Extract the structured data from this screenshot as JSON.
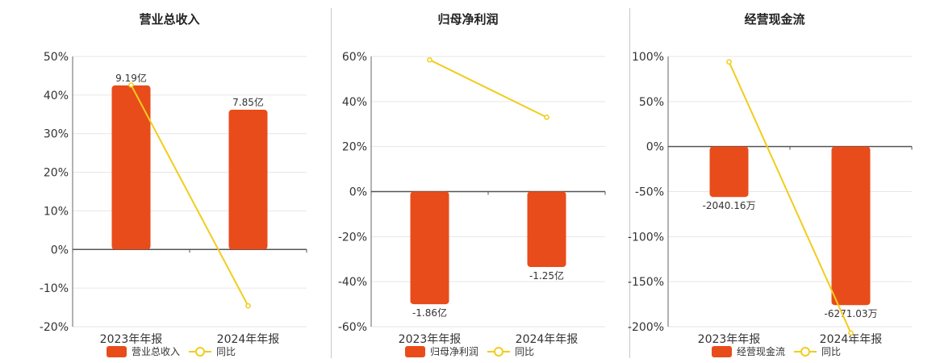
{
  "colors": {
    "bar": "#E84C1B",
    "line": "#F2CC1C",
    "marker_fill": "#ffffff",
    "axis": "#666666",
    "grid": "#e6e6e6",
    "zero_line": "#555555",
    "text": "#333333",
    "title": "#222222"
  },
  "chart_data": [
    {
      "type": "bar",
      "title": "营业总收入",
      "categories": [
        "2023年年报",
        "2024年年报"
      ],
      "ylim": [
        -20,
        50
      ],
      "yticks": [
        50,
        40,
        30,
        20,
        10,
        0,
        -10,
        -20
      ],
      "ytick_labels": [
        "50%",
        "40%",
        "30%",
        "20%",
        "10%",
        "0%",
        "-10%",
        "-20%"
      ],
      "grid": true,
      "legend_position": "bottom",
      "series": [
        {
          "name": "营业总收入",
          "kind": "bar",
          "values": [
            42.5,
            36.2
          ],
          "labels": [
            "9.19亿",
            "7.85亿"
          ]
        },
        {
          "name": "同比",
          "kind": "line",
          "values": [
            42.6,
            -14.6
          ]
        }
      ]
    },
    {
      "type": "bar",
      "title": "归母净利润",
      "categories": [
        "2023年年报",
        "2024年年报"
      ],
      "ylim": [
        -60,
        60
      ],
      "yticks": [
        60,
        40,
        20,
        0,
        -20,
        -40,
        -60
      ],
      "ytick_labels": [
        "60%",
        "40%",
        "20%",
        "0%",
        "-20%",
        "-40%",
        "-60%"
      ],
      "grid": true,
      "legend_position": "bottom",
      "series": [
        {
          "name": "归母净利润",
          "kind": "bar",
          "values": [
            -50,
            -33.5
          ],
          "labels": [
            "-1.86亿",
            "-1.25亿"
          ]
        },
        {
          "name": "同比",
          "kind": "line",
          "values": [
            58.5,
            33
          ]
        }
      ]
    },
    {
      "type": "bar",
      "title": "经营现金流",
      "categories": [
        "2023年年报",
        "2024年年报"
      ],
      "ylim": [
        -200,
        100
      ],
      "yticks": [
        100,
        50,
        0,
        -50,
        -100,
        -150,
        -200
      ],
      "ytick_labels": [
        "100%",
        "50%",
        "0%",
        "-50%",
        "-100%",
        "-150%",
        "-200%"
      ],
      "grid": true,
      "legend_position": "bottom",
      "series": [
        {
          "name": "经营现金流",
          "kind": "bar",
          "values": [
            -56,
            -176
          ],
          "labels": [
            "-2040.16万",
            "-6271.03万"
          ]
        },
        {
          "name": "同比",
          "kind": "line",
          "values": [
            94,
            -207
          ]
        }
      ]
    }
  ]
}
